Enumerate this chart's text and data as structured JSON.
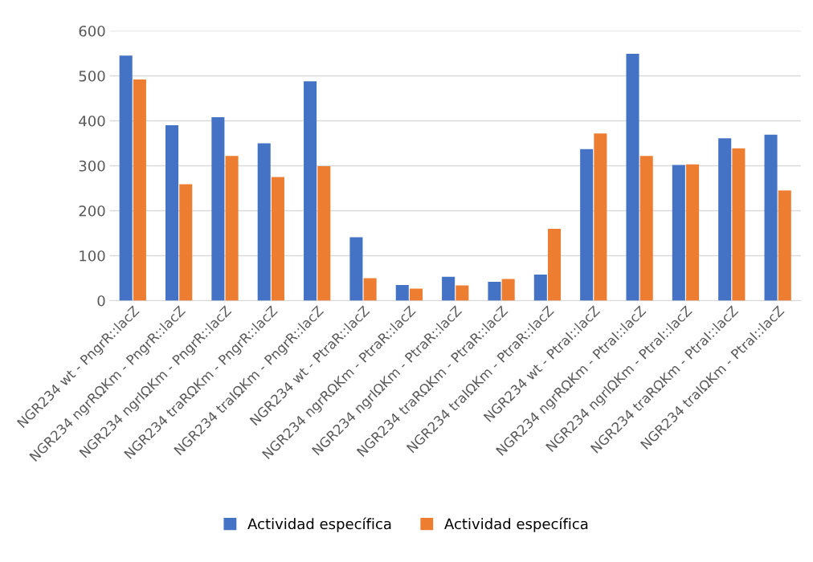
{
  "chart_data": {
    "type": "bar",
    "categories": [
      "NGR234 wt - PngrR::lacZ",
      "NGR234 ngrRΩKm - PngrR::lacZ",
      "NGR234 ngrIΩKm - PngrR::lacZ",
      "NGR234 traRΩKm - PngrR::lacZ",
      "NGR234 traIΩKm - PngrR::lacZ",
      "NGR234 wt - PtraR::lacZ",
      "NGR234 ngrRΩKm - PtraR::lacZ",
      "NGR234 ngrIΩKm - PtraR::lacZ",
      "NGR234 traRΩKm - PtraR::lacZ",
      "NGR234 traIΩKm - PtraR::lacZ",
      "NGR234 wt - PtraI::lacZ",
      "NGR234 ngrRΩKm - PtraI::lacZ",
      "NGR234 ngrIΩKm - PtraI::lacZ",
      "NGR234 traRΩKm - PtraI::lacZ",
      "NGR234 traIΩKm - PtraI::lacZ"
    ],
    "series": [
      {
        "name": "Actividad específica",
        "color": "#4472c4",
        "values": [
          545,
          390,
          408,
          350,
          488,
          141,
          35,
          53,
          42,
          58,
          337,
          549,
          302,
          361,
          369
        ]
      },
      {
        "name": "Actividad específica",
        "color": "#ed7d31",
        "values": [
          492,
          259,
          322,
          275,
          299,
          50,
          27,
          34,
          48,
          160,
          372,
          322,
          303,
          339,
          245
        ]
      }
    ],
    "ylim": [
      0,
      600
    ],
    "yticks": [
      0,
      100,
      200,
      300,
      400,
      500,
      600
    ],
    "grid": "y",
    "legend": "bottom"
  }
}
